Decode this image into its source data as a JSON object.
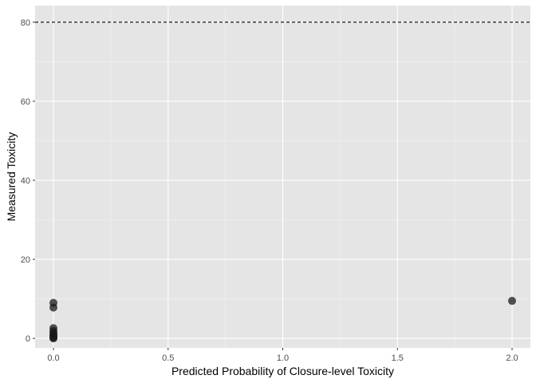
{
  "chart_data": {
    "type": "scatter",
    "xlabel": "Predicted Probability of Closure-level Toxicity",
    "ylabel": "Measured Toxicity",
    "xlim": [
      -0.08,
      2.08
    ],
    "ylim": [
      -2.4,
      84.2
    ],
    "x_ticks": [
      0.0,
      0.5,
      1.0,
      1.5,
      2.0
    ],
    "x_tick_labels": [
      "0.0",
      "0.5",
      "1.0",
      "1.5",
      "2.0"
    ],
    "y_ticks": [
      0,
      20,
      40,
      60,
      80
    ],
    "y_tick_labels": [
      "0",
      "20",
      "40",
      "60",
      "80"
    ],
    "grid": true,
    "reference_line": {
      "y": 80,
      "style": "dashed"
    },
    "points": [
      {
        "x": 0.0,
        "y": 9.0
      },
      {
        "x": 0.0,
        "y": 7.8
      },
      {
        "x": 0.0,
        "y": 2.6
      },
      {
        "x": 0.0,
        "y": 1.9
      },
      {
        "x": 0.0,
        "y": 1.4
      },
      {
        "x": 0.0,
        "y": 1.0
      },
      {
        "x": 0.0,
        "y": 0.7
      },
      {
        "x": 0.0,
        "y": 0.4
      },
      {
        "x": 0.0,
        "y": 0.2
      },
      {
        "x": 0.0,
        "y": 0.0
      },
      {
        "x": 2.0,
        "y": 9.5
      }
    ],
    "colors": {
      "panel_background": "#e5e5e5",
      "grid_major": "#ffffff",
      "grid_minor": "#f2f2f2",
      "point": "#1a1a1a",
      "reference_line": "#000000"
    }
  }
}
